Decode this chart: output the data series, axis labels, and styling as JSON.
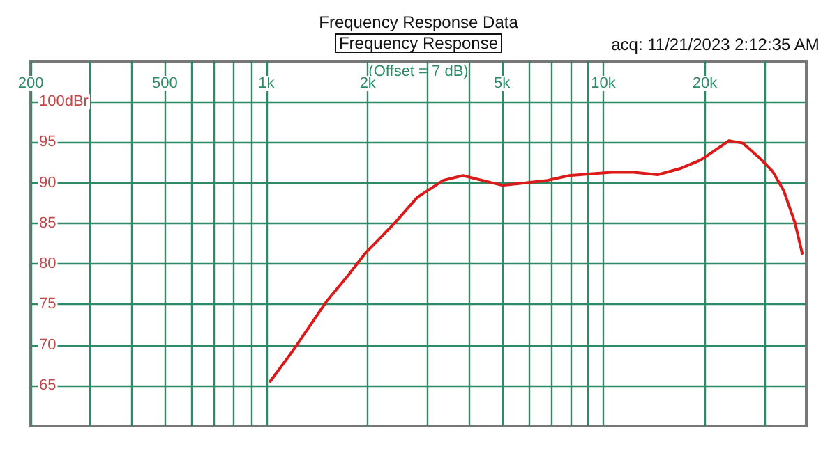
{
  "chart_data": {
    "type": "line",
    "title": "Frequency Response Data",
    "subtitle": "Frequency Response",
    "annotations": [
      "acq: 11/21/2023 2:12:35 AM",
      "(Offset = 7 dB)"
    ],
    "x": [
      1027,
      1200,
      1505,
      1750,
      1966,
      2400,
      2804,
      3350,
      3830,
      4370,
      5000,
      5870,
      6830,
      7920,
      9150,
      10600,
      12300,
      14500,
      17000,
      19400,
      21600,
      23600,
      25900,
      29000,
      31800,
      34300,
      37000,
      38900
    ],
    "series": [
      {
        "color": "#dd1a1a",
        "values": [
          65.5,
          69.3,
          75.3,
          78.6,
          81.3,
          85.0,
          88.2,
          90.3,
          90.9,
          90.3,
          89.7,
          90.0,
          90.3,
          90.9,
          91.1,
          91.3,
          91.3,
          91.0,
          91.8,
          92.8,
          94.1,
          95.2,
          94.9,
          93.1,
          91.4,
          89.0,
          85.1,
          81.3
        ]
      }
    ],
    "xlim": [
      200,
      40000
    ],
    "ylim": [
      60,
      105
    ],
    "log": "x",
    "xticks": [
      200,
      {
        "value": 300,
        "label": null
      },
      {
        "value": 400,
        "label": null
      },
      500,
      {
        "value": 600,
        "label": null
      },
      {
        "value": 700,
        "label": null
      },
      {
        "value": 800,
        "label": null
      },
      {
        "value": 900,
        "label": null
      },
      {
        "value": 1000,
        "label": "1k"
      },
      {
        "value": 2000,
        "label": "2k"
      },
      {
        "value": 3000,
        "label": null
      },
      {
        "value": 4000,
        "label": null
      },
      {
        "value": 5000,
        "label": "5k"
      },
      {
        "value": 6000,
        "label": null
      },
      {
        "value": 7000,
        "label": null
      },
      {
        "value": 8000,
        "label": null
      },
      {
        "value": 9000,
        "label": null
      },
      {
        "value": 10000,
        "label": "10k"
      },
      {
        "value": 20000,
        "label": "20k"
      },
      {
        "value": 30000,
        "label": null
      }
    ],
    "yticks": [
      {
        "value": 100,
        "label": "100dBr"
      },
      95,
      90,
      85,
      80,
      75,
      70,
      65
    ],
    "grid": true,
    "marker": "none",
    "line_style": "solid"
  }
}
